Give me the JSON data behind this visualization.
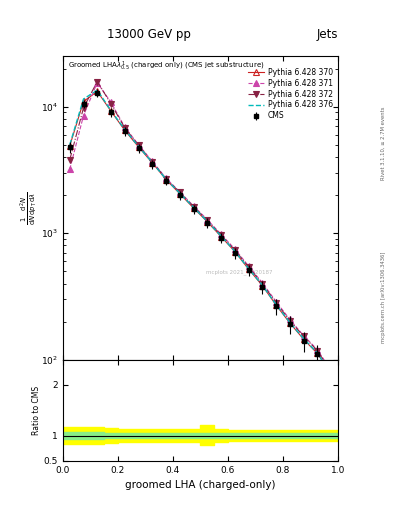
{
  "title_top": "13000 GeV pp",
  "title_right": "Jets",
  "plot_title": "Groomed LHA$\\lambda^{1}_{0.5}$ (charged only) (CMS jet substructure)",
  "xlabel": "groomed LHA (charged-only)",
  "ratio_ylabel": "Ratio to CMS",
  "watermark": "mcplots 2021_I1920187",
  "rivet_text": "Rivet 3.1.10, ≥ 2.7M events",
  "mcplots_url": "mcplots.cern.ch [arXiv:1306.3436]",
  "x_data": [
    0.025,
    0.075,
    0.125,
    0.175,
    0.225,
    0.275,
    0.325,
    0.375,
    0.425,
    0.475,
    0.525,
    0.575,
    0.625,
    0.675,
    0.725,
    0.775,
    0.825,
    0.875,
    0.925,
    0.975
  ],
  "cms_y": [
    4800,
    10500,
    12800,
    9000,
    6400,
    4700,
    3500,
    2600,
    2000,
    1550,
    1200,
    920,
    700,
    510,
    375,
    265,
    190,
    140,
    110,
    75
  ],
  "cms_yerr": [
    500,
    800,
    900,
    700,
    500,
    380,
    280,
    210,
    170,
    130,
    110,
    90,
    70,
    55,
    45,
    38,
    30,
    25,
    20,
    15
  ],
  "p370_y": [
    4900,
    11000,
    13200,
    9200,
    6500,
    4800,
    3600,
    2650,
    2050,
    1580,
    1230,
    940,
    715,
    520,
    385,
    270,
    195,
    145,
    112,
    77
  ],
  "p371_y": [
    3200,
    8500,
    15500,
    10800,
    6900,
    5000,
    3700,
    2720,
    2120,
    1640,
    1280,
    980,
    750,
    550,
    405,
    288,
    208,
    155,
    120,
    82
  ],
  "p372_y": [
    3800,
    9800,
    15800,
    10500,
    6800,
    4950,
    3650,
    2700,
    2100,
    1620,
    1260,
    965,
    735,
    540,
    398,
    282,
    204,
    153,
    118,
    80
  ],
  "p376_y": [
    5000,
    11500,
    13500,
    9300,
    6600,
    4850,
    3620,
    2670,
    2070,
    1600,
    1240,
    950,
    720,
    525,
    388,
    273,
    197,
    147,
    113,
    77
  ],
  "ylim_main": [
    100,
    25000
  ],
  "xlim": [
    0.0,
    1.0
  ],
  "ratio_ylim": [
    0.5,
    2.5
  ],
  "color_cms": "#000000",
  "color_370": "#cc2222",
  "color_371": "#cc44aa",
  "color_372": "#882244",
  "color_376": "#00bbbb",
  "x_ratio_edges": [
    0.0,
    0.05,
    0.1,
    0.15,
    0.2,
    0.25,
    0.3,
    0.35,
    0.4,
    0.45,
    0.5,
    0.55,
    0.6,
    0.65,
    0.7,
    0.75,
    0.8,
    0.85,
    0.9,
    0.95,
    1.0
  ],
  "green_lo": [
    0.93,
    0.93,
    0.94,
    0.95,
    0.95,
    0.95,
    0.96,
    0.96,
    0.96,
    0.96,
    0.96,
    0.96,
    0.96,
    0.96,
    0.96,
    0.96,
    0.96,
    0.96,
    0.96,
    0.96
  ],
  "green_hi": [
    1.07,
    1.07,
    1.06,
    1.05,
    1.05,
    1.05,
    1.04,
    1.04,
    1.04,
    1.04,
    1.04,
    1.04,
    1.04,
    1.04,
    1.04,
    1.04,
    1.04,
    1.04,
    1.04,
    1.04
  ],
  "yellow_lo": [
    0.83,
    0.83,
    0.84,
    0.86,
    0.87,
    0.87,
    0.88,
    0.88,
    0.88,
    0.88,
    0.82,
    0.88,
    0.89,
    0.89,
    0.89,
    0.89,
    0.89,
    0.89,
    0.89,
    0.89
  ],
  "yellow_hi": [
    1.17,
    1.17,
    1.16,
    1.14,
    1.13,
    1.13,
    1.12,
    1.12,
    1.12,
    1.12,
    1.2,
    1.12,
    1.11,
    1.11,
    1.11,
    1.11,
    1.11,
    1.11,
    1.11,
    1.11
  ]
}
